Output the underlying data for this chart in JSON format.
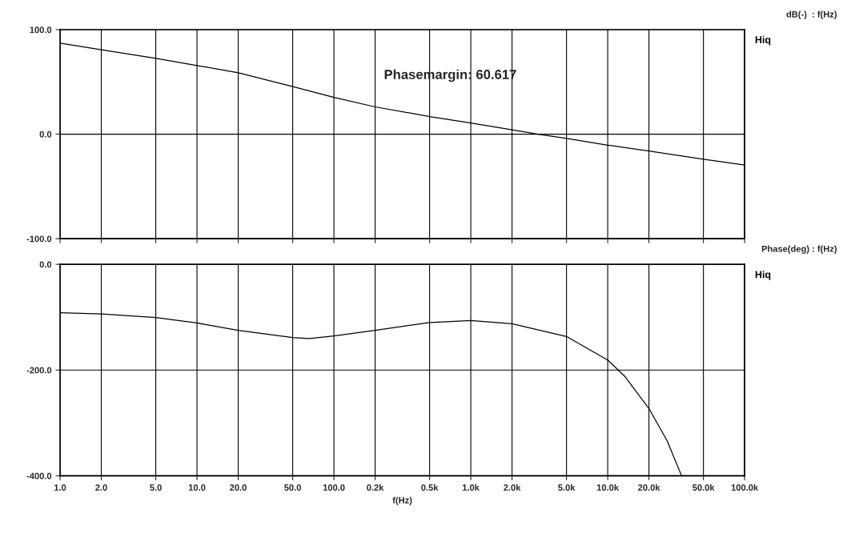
{
  "chart_data": [
    {
      "type": "line",
      "ylabel": "dB(-)  : f(Hz)",
      "annotations": [
        "Phasemargin: 60.617"
      ],
      "log": "x",
      "grid": true,
      "tick_labels": "y",
      "xlim": [
        1,
        100000
      ],
      "ylim": [
        -100,
        100
      ],
      "yticks": [
        {
          "value": -100,
          "label": "-100.0"
        },
        {
          "value": 0,
          "label": "0.0"
        },
        {
          "value": 100,
          "label": "100.0"
        }
      ],
      "xticks": [
        {
          "value": 1,
          "label": null
        },
        {
          "value": 2,
          "label": null
        },
        {
          "value": 5,
          "label": null
        },
        {
          "value": 10,
          "label": null
        },
        {
          "value": 20,
          "label": null
        },
        {
          "value": 50,
          "label": null
        },
        {
          "value": 100,
          "label": null
        },
        {
          "value": 200,
          "label": null
        },
        {
          "value": 500,
          "label": null
        },
        {
          "value": 1000,
          "label": null
        },
        {
          "value": 2000,
          "label": null
        },
        {
          "value": 5000,
          "label": null
        },
        {
          "value": 10000,
          "label": null
        },
        {
          "value": 20000,
          "label": null
        },
        {
          "value": 50000,
          "label": null
        },
        {
          "value": 100000,
          "label": null
        }
      ],
      "series": [
        {
          "name": "Hiq",
          "color": "#000000",
          "x": [
            1,
            2,
            5,
            10,
            20,
            50,
            100,
            200,
            500,
            1000,
            2000,
            3100,
            5000,
            10000,
            20000,
            50000,
            100000
          ],
          "values": [
            87.1,
            80.7,
            72.6,
            65.7,
            58.8,
            45.5,
            35.2,
            26.1,
            16.9,
            10.7,
            4.1,
            0,
            -4.1,
            -10.5,
            -16.1,
            -24,
            -29.6
          ]
        }
      ]
    },
    {
      "type": "line",
      "ylabel": "Phase(deg) : f(Hz)",
      "xlabel": "f(Hz)",
      "log": "x",
      "grid": true,
      "xlim": [
        1,
        100000
      ],
      "ylim": [
        -400,
        0
      ],
      "yticks": [
        {
          "value": -400,
          "label": "-400.0"
        },
        {
          "value": -200,
          "label": "-200.0"
        },
        {
          "value": 0,
          "label": "0.0"
        }
      ],
      "xticks": [
        {
          "value": 1,
          "label": "1.0"
        },
        {
          "value": 2,
          "label": "2.0"
        },
        {
          "value": 5,
          "label": "5.0"
        },
        {
          "value": 10,
          "label": "10.0"
        },
        {
          "value": 20,
          "label": "20.0"
        },
        {
          "value": 50,
          "label": "50.0"
        },
        {
          "value": 100,
          "label": "100.0"
        },
        {
          "value": 200,
          "label": "0.2k"
        },
        {
          "value": 500,
          "label": "0.5k"
        },
        {
          "value": 1000,
          "label": "1.0k"
        },
        {
          "value": 2000,
          "label": "2.0k"
        },
        {
          "value": 5000,
          "label": "5.0k"
        },
        {
          "value": 10000,
          "label": "10.0k"
        },
        {
          "value": 20000,
          "label": "20.0k"
        },
        {
          "value": 50000,
          "label": "50.0k"
        },
        {
          "value": 100000,
          "label": "100.0k"
        }
      ],
      "series": [
        {
          "name": "Hiq",
          "color": "#000000",
          "x": [
            1,
            2,
            5,
            10,
            20,
            50,
            66,
            100,
            200,
            500,
            1000,
            2000,
            5000,
            10000,
            13300,
            20000,
            27200,
            34500
          ],
          "values": [
            -91.6,
            -93.7,
            -100.8,
            -111,
            -125,
            -138.5,
            -140.5,
            -135.4,
            -125,
            -110,
            -106.4,
            -112.5,
            -136.5,
            -181,
            -211.7,
            -272.8,
            -334,
            -399
          ]
        }
      ]
    }
  ]
}
